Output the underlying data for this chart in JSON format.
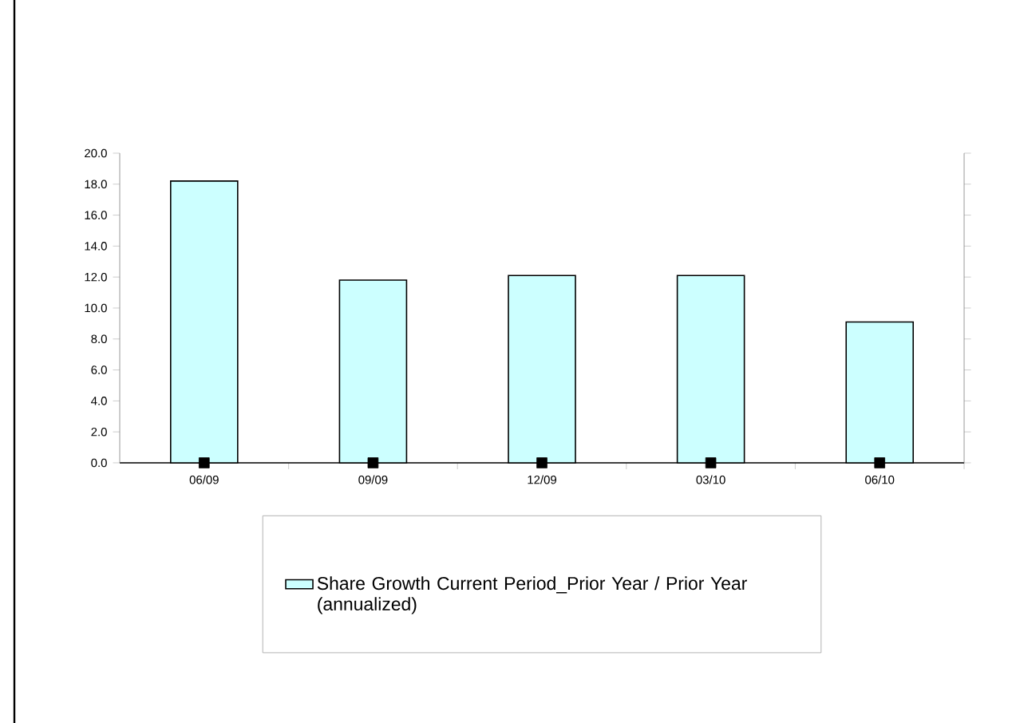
{
  "chart_data": {
    "type": "bar",
    "categories": [
      "06/09",
      "09/09",
      "12/09",
      "03/10",
      "06/10"
    ],
    "series": [
      {
        "name": "Share Growth Current Period_Prior Year / Prior Year (annualized)",
        "color": "#ccffff",
        "values": [
          18.2,
          11.8,
          12.1,
          12.1,
          9.1
        ]
      },
      {
        "type": "scatter",
        "color": "#000000",
        "marker": "square",
        "values": [
          0,
          0,
          0,
          0,
          0
        ]
      }
    ],
    "ylim": [
      0,
      20
    ],
    "yticks": [
      {
        "value": 0,
        "label": "0.0"
      },
      {
        "value": 2,
        "label": "2.0"
      },
      {
        "value": 4,
        "label": "4.0"
      },
      {
        "value": 6,
        "label": "6.0"
      },
      {
        "value": 8,
        "label": "8.0"
      },
      {
        "value": 10,
        "label": "10.0"
      },
      {
        "value": 12,
        "label": "12.0"
      },
      {
        "value": 14,
        "label": "14.0"
      },
      {
        "value": 16,
        "label": "16.0"
      },
      {
        "value": 18,
        "label": "18.0"
      },
      {
        "value": 20,
        "label": "20.0"
      }
    ],
    "grid": false,
    "legend": "bottom"
  }
}
